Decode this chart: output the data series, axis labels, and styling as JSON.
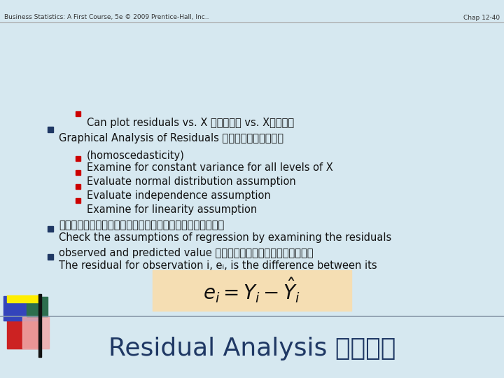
{
  "title": "Residual Analysis 残差分析",
  "title_color": "#1f3864",
  "bg_color": "#d6e8f0",
  "formula_bg": "#f5deb3",
  "bullet_l1_color": "#1f3864",
  "bullet_l2_color": "#cc0000",
  "text_color": "#111111",
  "footer_left": "Business Statistics: A First Course, 5e © 2009 Prentice-Hall, Inc..",
  "footer_right": "Chap 12-40",
  "line1_en": "The residual for observation i, e",
  "line1_sub": "i",
  "line1_en2": ", is the difference between its",
  "line1_zh": "observed and predicted value 残差就是观测值和预测值之间的差异",
  "line2_en": "Check the assumptions of regression by examining the residuals",
  "line2_zh": "通过对残差的分析和检验，可以判断回归模型的假设是否成立",
  "sub1": "Examine for linearity assumption",
  "sub2": "Evaluate independence assumption",
  "sub3": "Evaluate normal distribution assumption",
  "sub4a": "Examine for constant variance for all levels of X",
  "sub4b": "(homoscedasticity)",
  "line3_en": "Graphical Analysis of Residuals 常用残差图分析来实现",
  "sub5": "Can plot residuals vs. X 可以画残差 vs. X的散点图"
}
